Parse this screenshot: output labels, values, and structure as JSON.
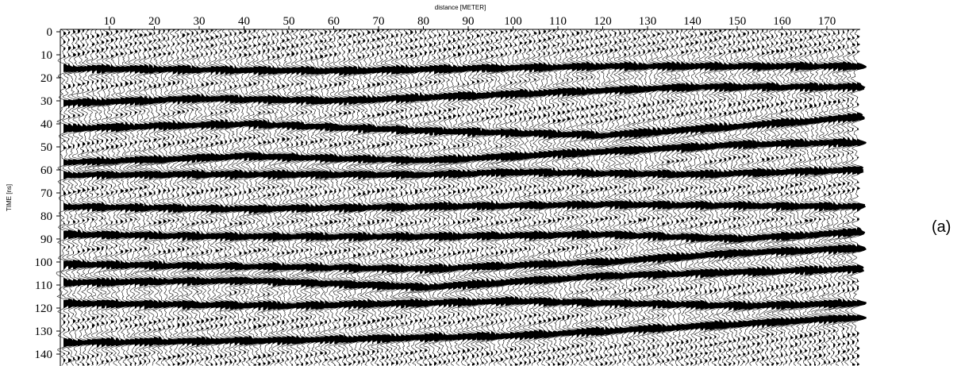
{
  "chart_data": {
    "type": "heatmap",
    "title": "",
    "xlabel": "distance [METER]",
    "ylabel": "TIME [ns]",
    "xlim": [
      0,
      177
    ],
    "ylim": [
      0,
      145
    ],
    "y_inverted": true,
    "x_ticks": [
      10,
      20,
      30,
      40,
      50,
      60,
      70,
      80,
      90,
      100,
      110,
      120,
      130,
      140,
      150,
      160,
      170
    ],
    "y_ticks": [
      0,
      10,
      20,
      30,
      40,
      50,
      60,
      70,
      80,
      90,
      100,
      110,
      120,
      130,
      140
    ],
    "display": "wiggle trace radargram, black and white",
    "reflectors": [
      {
        "name": "r1",
        "points": [
          [
            0,
            16
          ],
          [
            60,
            17
          ],
          [
            120,
            15
          ],
          [
            177,
            15
          ]
        ]
      },
      {
        "name": "r2",
        "points": [
          [
            0,
            31
          ],
          [
            30,
            29
          ],
          [
            60,
            30
          ],
          [
            100,
            27
          ],
          [
            140,
            24
          ],
          [
            177,
            24
          ]
        ]
      },
      {
        "name": "r3",
        "points": [
          [
            0,
            42
          ],
          [
            40,
            40
          ],
          [
            80,
            43
          ],
          [
            120,
            45
          ],
          [
            150,
            41
          ],
          [
            177,
            37
          ]
        ]
      },
      {
        "name": "r4",
        "points": [
          [
            0,
            57
          ],
          [
            40,
            54
          ],
          [
            80,
            56
          ],
          [
            120,
            52
          ],
          [
            150,
            49
          ],
          [
            177,
            48
          ]
        ]
      },
      {
        "name": "r5",
        "points": [
          [
            80,
            62
          ],
          [
            100,
            61
          ],
          [
            140,
            62
          ],
          [
            177,
            60
          ]
        ]
      },
      {
        "name": "r6",
        "points": [
          [
            0,
            76
          ],
          [
            40,
            77
          ],
          [
            80,
            76
          ],
          [
            120,
            75
          ],
          [
            177,
            76
          ]
        ]
      },
      {
        "name": "r7",
        "points": [
          [
            0,
            88
          ],
          [
            40,
            89
          ],
          [
            80,
            89
          ],
          [
            120,
            88
          ],
          [
            150,
            90
          ],
          [
            177,
            87
          ]
        ]
      },
      {
        "name": "r8",
        "points": [
          [
            0,
            101
          ],
          [
            40,
            102
          ],
          [
            80,
            103
          ],
          [
            120,
            100
          ],
          [
            150,
            96
          ],
          [
            177,
            94
          ]
        ]
      },
      {
        "name": "r9",
        "points": [
          [
            0,
            109
          ],
          [
            40,
            108
          ],
          [
            80,
            111
          ],
          [
            120,
            106
          ],
          [
            177,
            103
          ]
        ]
      },
      {
        "name": "r10",
        "points": [
          [
            0,
            118
          ],
          [
            50,
            119
          ],
          [
            100,
            117
          ],
          [
            150,
            119
          ],
          [
            177,
            118
          ]
        ]
      },
      {
        "name": "r11",
        "points": [
          [
            0,
            135
          ],
          [
            50,
            134
          ],
          [
            100,
            132
          ],
          [
            150,
            127
          ],
          [
            177,
            124
          ]
        ]
      }
    ]
  },
  "panel_label": "(a)"
}
